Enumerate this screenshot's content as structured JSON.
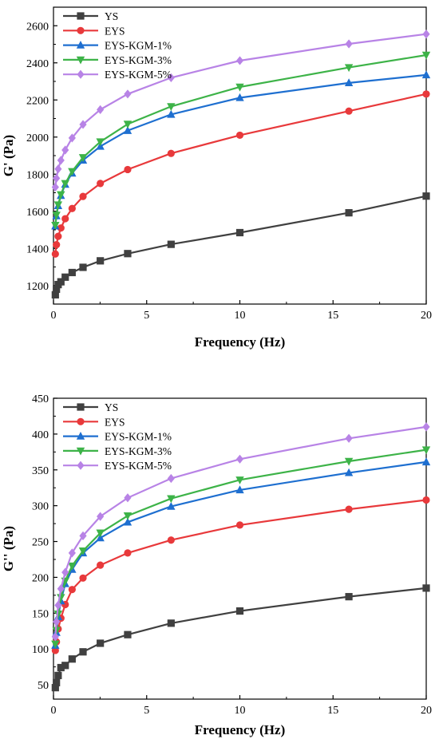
{
  "chart_data": [
    {
      "type": "line",
      "xlabel": "Frequency (Hz)",
      "ylabel": "G' (Pa)",
      "xlim": [
        0,
        20
      ],
      "ylim": [
        1100,
        2700
      ],
      "xticks": [
        0,
        5,
        10,
        15,
        20
      ],
      "yticks": [
        1200,
        1400,
        1600,
        1800,
        2000,
        2200,
        2400,
        2600
      ],
      "legend_position": "top-left",
      "x": [
        0.1,
        0.158,
        0.251,
        0.398,
        0.631,
        1.0,
        1.585,
        2.512,
        3.981,
        6.31,
        10.0,
        15.85,
        20.0
      ],
      "series": [
        {
          "name": "YS",
          "color": "#404040",
          "marker": "square",
          "values": [
            1150,
            1180,
            1205,
            1220,
            1245,
            1270,
            1298,
            1333,
            1372,
            1422,
            1485,
            1592,
            1682
          ]
        },
        {
          "name": "EYS",
          "color": "#e8393b",
          "marker": "circle",
          "values": [
            1370,
            1420,
            1465,
            1510,
            1560,
            1615,
            1680,
            1750,
            1825,
            1912,
            2010,
            2140,
            2232
          ]
        },
        {
          "name": "EYS-KGM-1%",
          "color": "#1e6fd0",
          "marker": "triangle-up",
          "values": [
            1520,
            1575,
            1630,
            1685,
            1745,
            1805,
            1875,
            1950,
            2035,
            2122,
            2212,
            2292,
            2335
          ]
        },
        {
          "name": "EYS-KGM-3%",
          "color": "#3db348",
          "marker": "triangle-down",
          "values": [
            1525,
            1580,
            1635,
            1690,
            1750,
            1815,
            1890,
            1975,
            2070,
            2165,
            2270,
            2375,
            2442
          ]
        },
        {
          "name": "EYS-KGM-5%",
          "color": "#b883e6",
          "marker": "diamond",
          "values": [
            1730,
            1778,
            1828,
            1875,
            1930,
            1995,
            2068,
            2148,
            2232,
            2320,
            2412,
            2502,
            2555
          ]
        }
      ]
    },
    {
      "type": "line",
      "xlabel": "Frequency (Hz)",
      "ylabel": "G'' (Pa)",
      "xlim": [
        0,
        20
      ],
      "ylim": [
        30,
        450
      ],
      "xticks": [
        0,
        5,
        10,
        15,
        20
      ],
      "yticks": [
        50,
        100,
        150,
        200,
        250,
        300,
        350,
        400,
        450
      ],
      "legend_position": "top-left",
      "x": [
        0.1,
        0.158,
        0.251,
        0.398,
        0.631,
        1.0,
        1.585,
        2.512,
        3.981,
        6.31,
        10.0,
        15.85,
        20.0
      ],
      "series": [
        {
          "name": "YS",
          "color": "#404040",
          "marker": "square",
          "values": [
            46,
            53,
            63,
            74,
            77,
            86,
            96,
            108,
            120,
            136,
            153,
            173,
            185
          ]
        },
        {
          "name": "EYS",
          "color": "#e8393b",
          "marker": "circle",
          "values": [
            98,
            110,
            128,
            143,
            162,
            183,
            199,
            217,
            234,
            252,
            273,
            295,
            308
          ]
        },
        {
          "name": "EYS-KGM-1%",
          "color": "#1e6fd0",
          "marker": "triangle-up",
          "values": [
            105,
            123,
            145,
            167,
            191,
            211,
            234,
            255,
            277,
            299,
            322,
            346,
            361
          ]
        },
        {
          "name": "EYS-KGM-3%",
          "color": "#3db348",
          "marker": "triangle-down",
          "values": [
            107,
            126,
            149,
            172,
            195,
            216,
            237,
            262,
            286,
            310,
            336,
            362,
            378
          ]
        },
        {
          "name": "EYS-KGM-5%",
          "color": "#b883e6",
          "marker": "diamond",
          "values": [
            117,
            138,
            161,
            184,
            207,
            234,
            258,
            285,
            311,
            338,
            365,
            394,
            410
          ]
        }
      ]
    }
  ]
}
